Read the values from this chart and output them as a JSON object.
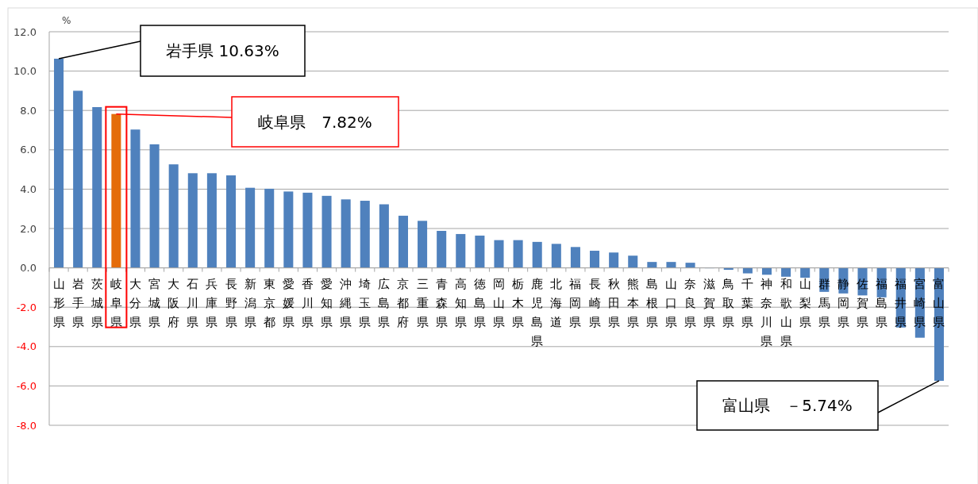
{
  "chart_data": {
    "type": "bar",
    "ylabel": "%",
    "categories": [
      "山形県",
      "岩手県",
      "茨城県",
      "岐阜県",
      "大分県",
      "宮城県",
      "大阪府",
      "石川県",
      "兵庫県",
      "長野県",
      "新潟県",
      "東京都",
      "愛媛県",
      "香川県",
      "愛知県",
      "沖縄県",
      "埼玉県",
      "広島県",
      "京都府",
      "三重県",
      "青森県",
      "高知県",
      "徳島県",
      "岡山県",
      "栃木県",
      "鹿児島県",
      "北海道",
      "福岡県",
      "長崎県",
      "秋田県",
      "熊本県",
      "島根県",
      "山口県",
      "奈良県",
      "滋賀県",
      "鳥取県",
      "千葉県",
      "神奈川県",
      "和歌山県",
      "山梨県",
      "群馬県",
      "静岡県",
      "佐賀県",
      "福島県",
      "福井県",
      "宮崎県",
      "富山県"
    ],
    "values": [
      10.63,
      9.0,
      8.17,
      7.82,
      7.03,
      6.28,
      5.26,
      4.81,
      4.81,
      4.7,
      4.07,
      4.02,
      3.88,
      3.82,
      3.66,
      3.48,
      3.41,
      3.23,
      2.65,
      2.39,
      1.88,
      1.72,
      1.64,
      1.41,
      1.41,
      1.32,
      1.22,
      1.06,
      0.87,
      0.78,
      0.62,
      0.3,
      0.3,
      0.26,
      0.0,
      -0.1,
      -0.28,
      -0.35,
      -0.45,
      -0.5,
      -1.22,
      -1.3,
      -1.4,
      -1.5,
      -3.03,
      -3.55,
      -5.74
    ],
    "colors": [
      "#4f81bd",
      "#4f81bd",
      "#4f81bd",
      "#e46c0a",
      "#4f81bd",
      "#4f81bd",
      "#4f81bd",
      "#4f81bd",
      "#4f81bd",
      "#4f81bd",
      "#4f81bd",
      "#4f81bd",
      "#4f81bd",
      "#4f81bd",
      "#4f81bd",
      "#4f81bd",
      "#4f81bd",
      "#4f81bd",
      "#4f81bd",
      "#4f81bd",
      "#4f81bd",
      "#4f81bd",
      "#4f81bd",
      "#4f81bd",
      "#4f81bd",
      "#4f81bd",
      "#4f81bd",
      "#4f81bd",
      "#4f81bd",
      "#4f81bd",
      "#4f81bd",
      "#4f81bd",
      "#4f81bd",
      "#4f81bd",
      "#4f81bd",
      "#4f81bd",
      "#4f81bd",
      "#4f81bd",
      "#4f81bd",
      "#4f81bd",
      "#4f81bd",
      "#4f81bd",
      "#4f81bd",
      "#4f81bd",
      "#4f81bd",
      "#4f81bd",
      "#4f81bd"
    ],
    "ylim": [
      -8,
      12
    ],
    "yticks": [
      {
        "value": -8,
        "label": "-8.0"
      },
      {
        "value": -6,
        "label": "-6.0"
      },
      {
        "value": -4,
        "label": "-4.0"
      },
      {
        "value": -2,
        "label": "-2.0"
      },
      {
        "value": 0,
        "label": "0.0"
      },
      {
        "value": 2,
        "label": "2.0"
      },
      {
        "value": 4,
        "label": "4.0"
      },
      {
        "value": 6,
        "label": "6.0"
      },
      {
        "value": 8,
        "label": "8.0"
      },
      {
        "value": 10,
        "label": "10.0"
      },
      {
        "value": 12,
        "label": "12.0"
      }
    ],
    "grid": "y",
    "annotations": [
      "岩手県 10.63%",
      "岐阜県　7.82%",
      "富山県　－5.74%"
    ]
  }
}
